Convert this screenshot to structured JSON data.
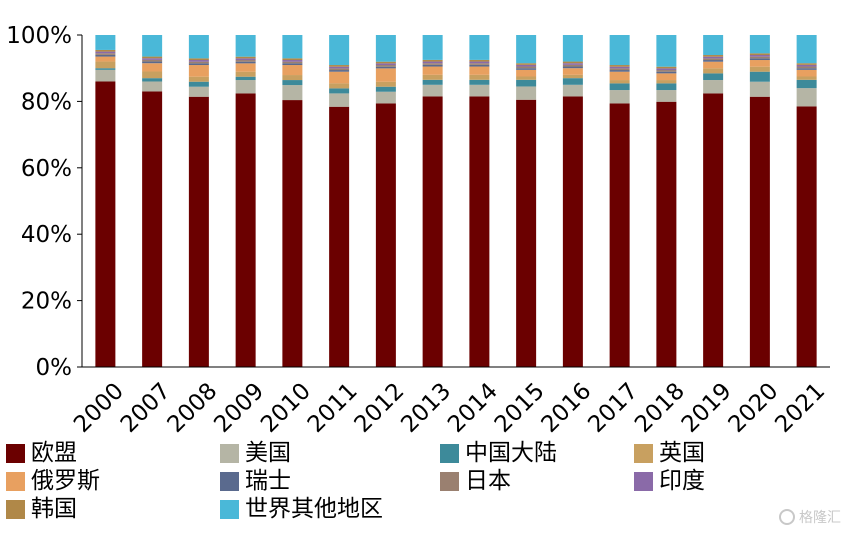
{
  "chart_data": {
    "type": "bar",
    "stacked": true,
    "categories": [
      "2000",
      "2007",
      "2008",
      "2009",
      "2010",
      "2011",
      "2012",
      "2013",
      "2014",
      "2015",
      "2016",
      "2017",
      "2018",
      "2019",
      "2020",
      "2021"
    ],
    "ylim": [
      0,
      100
    ],
    "yticks": [
      0,
      20,
      40,
      60,
      80,
      100
    ],
    "ytick_labels": [
      "0%",
      "20%",
      "40%",
      "60%",
      "80%",
      "100%"
    ],
    "legend_position": "bottom",
    "grid": false,
    "series": [
      {
        "name": "欧盟",
        "color": "#6b0000",
        "values": [
          86,
          83,
          81,
          82,
          80,
          78,
          79,
          81.5,
          81.5,
          80.5,
          81.5,
          79,
          79.5,
          82,
          81,
          78.5
        ]
      },
      {
        "name": "美国",
        "color": "#b5b5a5",
        "values": [
          3.5,
          3,
          3,
          4,
          4.5,
          4,
          3.5,
          3.5,
          3.5,
          4,
          3.5,
          4,
          3.5,
          4,
          4.5,
          5.5
        ]
      },
      {
        "name": "中国大陆",
        "color": "#3d8a9a",
        "values": [
          0.5,
          1,
          1.5,
          1,
          1.5,
          1.5,
          1.5,
          1.5,
          1.5,
          2,
          2,
          2,
          2,
          2,
          3,
          2.5
        ]
      },
      {
        "name": "英国",
        "color": "#c8a060",
        "values": [
          2,
          2,
          1.5,
          1.5,
          1.5,
          1.5,
          1.5,
          1.5,
          1.5,
          1,
          1,
          1,
          1,
          1.5,
          1.5,
          1
        ]
      },
      {
        "name": "俄罗斯",
        "color": "#e8a060",
        "values": [
          1.5,
          2.5,
          3.5,
          2.5,
          3,
          3.5,
          4,
          2.5,
          2.5,
          2,
          2,
          2.5,
          2,
          2,
          2,
          2
        ]
      },
      {
        "name": "瑞士",
        "color": "#5a6a8e",
        "values": [
          0.5,
          0.5,
          0.5,
          0.5,
          0.5,
          0.5,
          0.5,
          0.5,
          0.5,
          0.5,
          0.5,
          0.5,
          0.5,
          0.5,
          0.5,
          0.5
        ]
      },
      {
        "name": "日本",
        "color": "#9a8070",
        "values": [
          0.5,
          0.5,
          0.5,
          0.5,
          0.5,
          0.5,
          0.5,
          0.5,
          0.5,
          0.5,
          0.5,
          0.5,
          0.5,
          0.5,
          0.5,
          0.5
        ]
      },
      {
        "name": "印度",
        "color": "#8a6aa8",
        "values": [
          0.5,
          0.5,
          0.5,
          0.5,
          0.5,
          0.5,
          0.5,
          0.5,
          0.5,
          0.5,
          0.5,
          0.5,
          0.5,
          0.5,
          0.5,
          0.5
        ]
      },
      {
        "name": "韩国",
        "color": "#b08848",
        "values": [
          0.5,
          0.5,
          0.5,
          0.5,
          0.5,
          0.5,
          0.5,
          0.5,
          0.5,
          0.5,
          0.5,
          0.5,
          0.5,
          0.5,
          0.5,
          0.5
        ]
      },
      {
        "name": "世界其他地区",
        "color": "#4ab8d8",
        "values": [
          4.5,
          6.5,
          7,
          6.5,
          7,
          9,
          8,
          7.5,
          7.5,
          8.5,
          8,
          9,
          9.5,
          6,
          5.5,
          8.5
        ]
      }
    ]
  },
  "watermark": {
    "text": "格隆汇"
  }
}
